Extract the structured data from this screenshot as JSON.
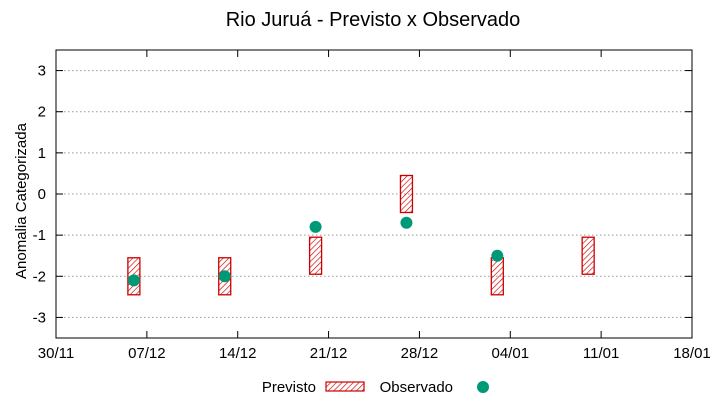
{
  "chart_data": {
    "type": "scatter",
    "title": "Rio Juruá - Previsto x Observado",
    "xlabel": "",
    "ylabel": "Anomalia Categorizada",
    "x_ticks": [
      "30/11",
      "07/12",
      "14/12",
      "21/12",
      "28/12",
      "04/01",
      "11/01",
      "18/01"
    ],
    "y_ticks": [
      "-3",
      "-2",
      "-1",
      "0",
      "1",
      "2",
      "3"
    ],
    "ylim": [
      -3.5,
      3.5
    ],
    "grid": "horizontal dotted",
    "legend": "bottom",
    "colors": {
      "previsto": "#cc0000",
      "observado": "#009977"
    },
    "series": [
      {
        "name": "Previsto",
        "kind": "range",
        "points": [
          {
            "x": "06/12",
            "low": -2.45,
            "high": -1.55
          },
          {
            "x": "13/12",
            "low": -2.45,
            "high": -1.55
          },
          {
            "x": "20/12",
            "low": -1.95,
            "high": -1.05
          },
          {
            "x": "27/12",
            "low": -0.45,
            "high": 0.45
          },
          {
            "x": "03/01",
            "low": -2.45,
            "high": -1.55
          },
          {
            "x": "10/01",
            "low": -1.95,
            "high": -1.05
          }
        ]
      },
      {
        "name": "Observado",
        "kind": "point",
        "points": [
          {
            "x": "06/12",
            "y": -2.1
          },
          {
            "x": "13/12",
            "y": -2.0
          },
          {
            "x": "20/12",
            "y": -0.8
          },
          {
            "x": "27/12",
            "y": -0.7
          },
          {
            "x": "03/01",
            "y": -1.5
          }
        ]
      }
    ]
  }
}
